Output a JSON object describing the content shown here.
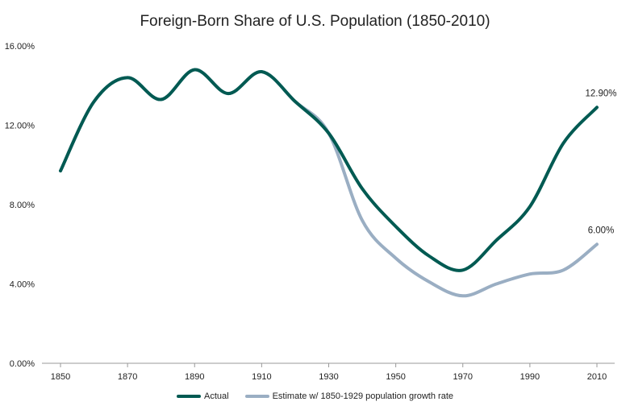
{
  "chart_data": {
    "type": "line",
    "title": "Foreign-Born Share of U.S. Population (1850-2010)",
    "xlabel": "",
    "ylabel": "",
    "x": [
      1850,
      1860,
      1870,
      1880,
      1890,
      1900,
      1910,
      1920,
      1930,
      1940,
      1950,
      1960,
      1970,
      1980,
      1990,
      2000,
      2010
    ],
    "x_tick_labels": [
      "1850",
      "1870",
      "1890",
      "1910",
      "1930",
      "1950",
      "1970",
      "1990",
      "2010"
    ],
    "x_tick_values": [
      1850,
      1870,
      1890,
      1910,
      1930,
      1950,
      1970,
      1990,
      2010
    ],
    "y_tick_labels": [
      "0.00%",
      "4.00%",
      "8.00%",
      "12.00%",
      "16.00%"
    ],
    "y_tick_values": [
      0,
      4,
      8,
      12,
      16
    ],
    "xlim": [
      1850,
      2010
    ],
    "ylim": [
      0,
      16
    ],
    "series": [
      {
        "name": "Actual",
        "color": "#005a52",
        "values": [
          9.7,
          13.2,
          14.4,
          13.3,
          14.8,
          13.6,
          14.7,
          13.2,
          11.6,
          8.8,
          6.9,
          5.4,
          4.7,
          6.2,
          7.9,
          11.1,
          12.9
        ],
        "end_label": "12.90%"
      },
      {
        "name": "Estimate w/ 1850-1929 population growth rate",
        "color": "#9aaec3",
        "values": [
          9.7,
          13.2,
          14.4,
          13.3,
          14.8,
          13.6,
          14.7,
          13.2,
          11.6,
          7.2,
          5.3,
          4.1,
          3.4,
          4.0,
          4.5,
          4.7,
          6.0
        ],
        "end_label": "6.00%"
      }
    ],
    "legend_position": "bottom-center"
  },
  "colors": {
    "axis": "#999999",
    "text": "#222222",
    "background": "#ffffff"
  }
}
